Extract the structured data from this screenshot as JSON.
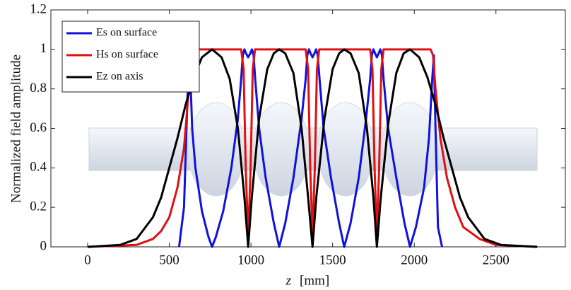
{
  "chart_data": {
    "type": "line",
    "ylabel": "Normalized field amplitude",
    "xlabel_var": "z",
    "xlabel_unit": "[mm]",
    "xlim": [
      -225,
      2925
    ],
    "ylim": [
      0,
      1.2
    ],
    "xticks": [
      0,
      500,
      1000,
      1500,
      2000,
      2500
    ],
    "yticks": [
      0,
      0.2,
      0.4,
      0.6,
      0.8,
      1,
      1.2
    ],
    "legend": "upper-left",
    "series": [
      {
        "name": "Es on surface",
        "color": "#1010e0",
        "x": [
          560,
          590,
          615,
          625,
          640,
          660,
          700,
          740,
          762,
          785,
          830,
          880,
          920,
          940,
          950,
          960,
          970,
          983,
          996,
          1006,
          1016,
          1026,
          1050,
          1090,
          1140,
          1173,
          1210,
          1260,
          1310,
          1335,
          1345,
          1355,
          1365,
          1377,
          1389,
          1399,
          1409,
          1420,
          1445,
          1490,
          1540,
          1571,
          1610,
          1660,
          1705,
          1730,
          1740,
          1750,
          1760,
          1771,
          1782,
          1792,
          1802,
          1812,
          1840,
          1890,
          1940,
          1974,
          2010,
          2060,
          2090,
          2110,
          2120,
          2130,
          2145,
          2170
        ],
        "values": [
          0,
          0.2,
          0.85,
          0.97,
          0.6,
          0.4,
          0.18,
          0.05,
          0,
          0.05,
          0.18,
          0.4,
          0.65,
          0.85,
          0.97,
          1,
          0.98,
          0.96,
          0.98,
          1,
          0.97,
          0.85,
          0.6,
          0.35,
          0.12,
          0,
          0.12,
          0.35,
          0.65,
          0.85,
          0.97,
          1,
          0.98,
          0.96,
          0.98,
          1,
          0.97,
          0.85,
          0.6,
          0.35,
          0.12,
          0,
          0.12,
          0.35,
          0.65,
          0.85,
          0.97,
          1,
          0.98,
          0.96,
          0.98,
          1,
          0.97,
          0.85,
          0.6,
          0.35,
          0.12,
          0,
          0.1,
          0.3,
          0.55,
          0.85,
          0.97,
          0.6,
          0.1,
          0
        ]
      },
      {
        "name": "Hs on surface",
        "color": "#e01010",
        "x": [
          0,
          300,
          400,
          450,
          500,
          550,
          590,
          615,
          632,
          650,
          940,
          955,
          968,
          983,
          998,
          1011,
          1025,
          1335,
          1350,
          1363,
          1377,
          1391,
          1404,
          1418,
          1730,
          1744,
          1757,
          1771,
          1785,
          1798,
          1812,
          2100,
          2115,
          2130,
          2160,
          2200,
          2250,
          2300,
          2400,
          2500,
          2753
        ],
        "values": [
          0,
          0.01,
          0.04,
          0.08,
          0.15,
          0.3,
          0.5,
          0.75,
          0.97,
          1,
          1,
          0.9,
          0.4,
          0.05,
          0.4,
          0.9,
          1,
          1,
          0.9,
          0.4,
          0.05,
          0.4,
          0.9,
          1,
          1,
          0.9,
          0.4,
          0.05,
          0.4,
          0.9,
          1,
          1,
          0.97,
          0.8,
          0.55,
          0.35,
          0.2,
          0.1,
          0.04,
          0.01,
          0
        ]
      },
      {
        "name": "Ez on axis",
        "color": "#000000",
        "x": [
          0,
          200,
          300,
          400,
          450,
          500,
          550,
          600,
          650,
          700,
          762,
          820,
          870,
          920,
          960,
          983,
          1005,
          1050,
          1100,
          1140,
          1173,
          1210,
          1260,
          1310,
          1350,
          1377,
          1400,
          1450,
          1500,
          1540,
          1571,
          1610,
          1660,
          1710,
          1750,
          1771,
          1795,
          1840,
          1890,
          1935,
          1974,
          2030,
          2080,
          2130,
          2180,
          2230,
          2280,
          2330,
          2430,
          2530,
          2753
        ],
        "values": [
          0,
          0.01,
          0.04,
          0.15,
          0.25,
          0.4,
          0.55,
          0.72,
          0.86,
          0.96,
          1,
          0.96,
          0.85,
          0.6,
          0.25,
          0,
          0.25,
          0.65,
          0.9,
          0.98,
          1,
          0.98,
          0.88,
          0.6,
          0.25,
          0,
          0.25,
          0.65,
          0.9,
          0.98,
          1,
          0.98,
          0.88,
          0.6,
          0.25,
          0,
          0.25,
          0.62,
          0.88,
          0.98,
          1,
          0.96,
          0.86,
          0.72,
          0.55,
          0.4,
          0.25,
          0.15,
          0.04,
          0.01,
          0
        ]
      }
    ]
  }
}
